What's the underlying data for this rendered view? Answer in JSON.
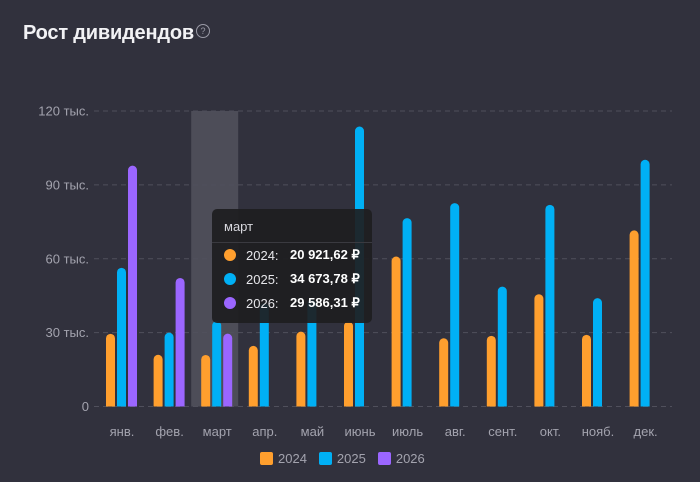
{
  "header": {
    "title": "Рост дивидендов",
    "help_icon": "?"
  },
  "colors": {
    "2024": "#ff9f2e",
    "2025": "#00b0f5",
    "2026": "#9b66ff"
  },
  "tooltip": {
    "month": "март",
    "rows": [
      {
        "year": "2024:",
        "value": "20 921,62 ₽",
        "color": "#ff9f2e"
      },
      {
        "year": "2025:",
        "value": "34 673,78 ₽",
        "color": "#00b0f5"
      },
      {
        "year": "2026:",
        "value": "29 586,31 ₽",
        "color": "#9b66ff"
      }
    ]
  },
  "chart_data": {
    "type": "bar",
    "title": "Рост дивидендов",
    "xlabel": "",
    "ylabel": "",
    "ylim": [
      0,
      120000
    ],
    "yticks": [
      0,
      30000,
      60000,
      90000,
      120000
    ],
    "ytick_labels": [
      "0",
      "30 тыс.",
      "60 тыс.",
      "90 тыс.",
      "120 тыс."
    ],
    "grid": true,
    "legend_position": "bottom",
    "highlighted_category": "март",
    "categories": [
      "янв.",
      "фев.",
      "март",
      "апр.",
      "май",
      "июнь",
      "июль",
      "авг.",
      "сент.",
      "окт.",
      "нояб.",
      "дек."
    ],
    "series": [
      {
        "name": "2024",
        "color": "#ff9f2e",
        "values": [
          29500,
          21000,
          20921.62,
          24600,
          30400,
          34500,
          60900,
          27700,
          28700,
          45600,
          29100,
          71500
        ]
      },
      {
        "name": "2025",
        "color": "#00b0f5",
        "values": [
          56300,
          30000,
          34673.78,
          42000,
          43300,
          113700,
          76500,
          82600,
          48700,
          81900,
          44000,
          100200
        ]
      },
      {
        "name": "2026",
        "color": "#9b66ff",
        "values": [
          97800,
          52200,
          29586.31,
          null,
          null,
          null,
          null,
          null,
          null,
          null,
          null,
          null
        ]
      }
    ]
  }
}
